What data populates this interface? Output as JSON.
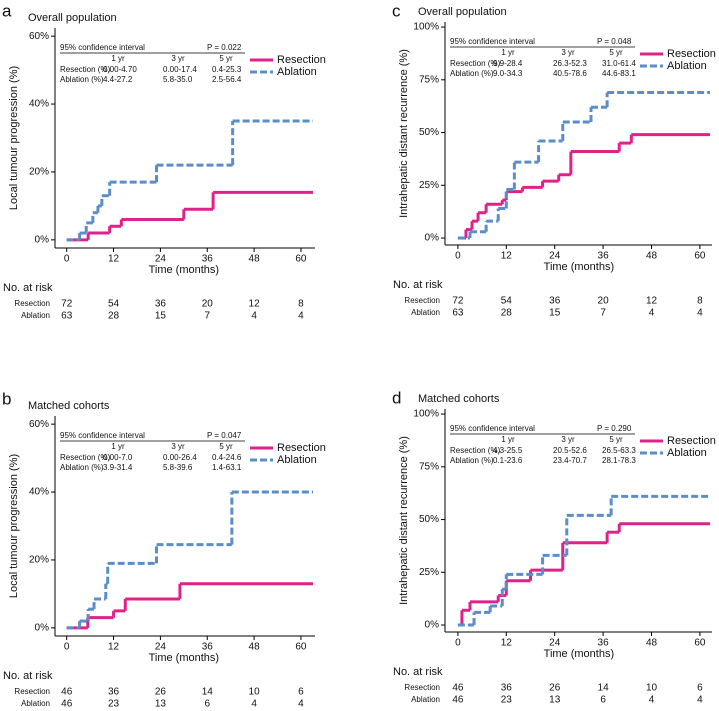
{
  "chart_data": [
    {
      "type": "step",
      "panel_label": "a",
      "subtitle": "Overall population",
      "x_label": "Time (months)",
      "y_label": "Local tumour progression (%)",
      "xlim": [
        -3,
        63.6
      ],
      "ylim": [
        -2.4,
        62.4
      ],
      "xticks": [
        0,
        12,
        24,
        36,
        48,
        60
      ],
      "yticks": [
        {
          "value": 0,
          "label": "0%"
        },
        {
          "value": 20,
          "label": "20%"
        },
        {
          "value": 40,
          "label": "40%"
        },
        {
          "value": 60,
          "label": "60%"
        }
      ],
      "series": [
        {
          "name": "Resection",
          "color": "#e0218a",
          "line_style": "solid",
          "x": [
            0,
            5.5,
            11,
            14,
            30,
            37.5
          ],
          "values": [
            0,
            2,
            4,
            6,
            9,
            14
          ]
        },
        {
          "name": "Ablation",
          "color": "#5b8ec9",
          "line_style": "dashed",
          "x": [
            0,
            3.3,
            5,
            6.7,
            8,
            9,
            11,
            23,
            42.5
          ],
          "values": [
            0,
            2,
            5,
            8,
            10,
            13,
            17,
            22,
            35
          ]
        }
      ],
      "ci_table": {
        "title": "95% confidence interval",
        "p_value": "P = 0.022",
        "columns": [
          "1 yr",
          "3 yr",
          "5 yr"
        ],
        "rows": [
          {
            "label": "Resection (%)",
            "cells": [
              "0.00-4.70",
              "0.00-17.4",
              "0.4-25.3"
            ]
          },
          {
            "label": "Ablation (%)",
            "cells": [
              "4.4-27.2",
              "5.8-35.0",
              "2.5-56.4"
            ]
          }
        ]
      },
      "risk_table": {
        "title": "No. at risk",
        "rows": [
          {
            "label": "Resection",
            "values": [
              72,
              54,
              36,
              20,
              12,
              8
            ]
          },
          {
            "label": "Ablation",
            "values": [
              63,
              28,
              15,
              7,
              4,
              4
            ]
          }
        ]
      }
    },
    {
      "type": "step",
      "panel_label": "b",
      "subtitle": "Matched cohorts",
      "x_label": "Time (months)",
      "y_label": "Local tumour progression (%)",
      "xlim": [
        -3,
        63.6
      ],
      "ylim": [
        -2.4,
        62.4
      ],
      "xticks": [
        0,
        12,
        24,
        36,
        48,
        60
      ],
      "yticks": [
        {
          "value": 0,
          "label": "0%"
        },
        {
          "value": 20,
          "label": "20%"
        },
        {
          "value": 40,
          "label": "40%"
        },
        {
          "value": 60,
          "label": "60%"
        }
      ],
      "series": [
        {
          "name": "Resection",
          "color": "#e0218a",
          "line_style": "solid",
          "x": [
            0,
            5.4,
            12,
            15,
            29
          ],
          "values": [
            0,
            3,
            5,
            8.5,
            13
          ]
        },
        {
          "name": "Ablation",
          "color": "#5b8ec9",
          "line_style": "dashed",
          "x": [
            0,
            3.3,
            5.5,
            7,
            10,
            10.5,
            23,
            42.3
          ],
          "values": [
            0,
            2,
            5.5,
            8.5,
            13,
            19,
            24.5,
            40
          ]
        }
      ],
      "ci_table": {
        "title": "95% confidence interval",
        "p_value": "P = 0.047",
        "columns": [
          "1 yr",
          "3 yr",
          "5 yr"
        ],
        "rows": [
          {
            "label": "Resection (%)",
            "cells": [
              "0.00-7.0",
              "0.00-26.4",
              "0.4-24.6"
            ]
          },
          {
            "label": "Ablation (%)",
            "cells": [
              "3.9-31.4",
              "5.8-39.6",
              "1.4-63.1"
            ]
          }
        ]
      },
      "risk_table": {
        "title": "No. at risk",
        "rows": [
          {
            "label": "Resection",
            "values": [
              46,
              36,
              26,
              14,
              10,
              6
            ]
          },
          {
            "label": "Ablation",
            "values": [
              46,
              23,
              13,
              6,
              4,
              4
            ]
          }
        ]
      }
    },
    {
      "type": "step",
      "panel_label": "c",
      "subtitle": "Overall population",
      "x_label": "Time (months)",
      "y_label": "Intrahepatic distant recurrence (%)",
      "xlim": [
        -3.2,
        63
      ],
      "ylim": [
        -3.3,
        102.4
      ],
      "xticks": [
        0,
        12,
        24,
        36,
        48,
        60
      ],
      "yticks": [
        {
          "value": 0,
          "label": "0%"
        },
        {
          "value": 25,
          "label": "25%"
        },
        {
          "value": 50,
          "label": "50%"
        },
        {
          "value": 75,
          "label": "75%"
        },
        {
          "value": 100,
          "label": "100%"
        }
      ],
      "series": [
        {
          "name": "Resection",
          "color": "#e0218a",
          "line_style": "solid",
          "x": [
            0,
            2,
            3.5,
            5,
            7,
            11,
            12,
            16,
            21,
            25,
            28,
            40,
            43
          ],
          "values": [
            0,
            4,
            8,
            12,
            16,
            18,
            22,
            24,
            27,
            30,
            41,
            45,
            49
          ]
        },
        {
          "name": "Ablation",
          "color": "#5b8ec9",
          "line_style": "dashed",
          "x": [
            0,
            3,
            7,
            10,
            12,
            14,
            20,
            26,
            33,
            37
          ],
          "values": [
            0,
            3,
            8,
            14,
            23,
            36,
            46,
            55,
            62,
            69
          ]
        }
      ],
      "ci_table": {
        "title": "95% confidence interval",
        "p_value": "P = 0.048",
        "columns": [
          "1 yr",
          "3 yr",
          "5 yr"
        ],
        "rows": [
          {
            "label": "Resection (%)",
            "cells": [
              "9.9-28.4",
              "26.3-52.3",
              "31.0-61.4"
            ]
          },
          {
            "label": "Ablation (%)",
            "cells": [
              "9.0-34.3",
              "40.5-78.6",
              "44.6-83.1"
            ]
          }
        ]
      },
      "risk_table": {
        "title": "No. at risk",
        "rows": [
          {
            "label": "Resection",
            "values": [
              72,
              54,
              36,
              20,
              12,
              8
            ]
          },
          {
            "label": "Ablation",
            "values": [
              63,
              28,
              15,
              7,
              4,
              4
            ]
          }
        ]
      }
    },
    {
      "type": "step",
      "panel_label": "d",
      "subtitle": "Matched cohorts",
      "x_label": "Time (months)",
      "y_label": "Intrahepatic distant recurrence (%)",
      "xlim": [
        -3.2,
        63
      ],
      "ylim": [
        -3.3,
        102.4
      ],
      "xticks": [
        0,
        12,
        24,
        36,
        48,
        60
      ],
      "yticks": [
        {
          "value": 0,
          "label": "0%"
        },
        {
          "value": 25,
          "label": "25%"
        },
        {
          "value": 50,
          "label": "50%"
        },
        {
          "value": 75,
          "label": "75%"
        },
        {
          "value": 100,
          "label": "100%"
        }
      ],
      "series": [
        {
          "name": "Resection",
          "color": "#e0218a",
          "line_style": "solid",
          "x": [
            0,
            1,
            3,
            10,
            12,
            18,
            26,
            37,
            40
          ],
          "values": [
            0,
            7,
            11,
            14,
            21,
            26,
            39,
            44,
            48
          ]
        },
        {
          "name": "Ablation",
          "color": "#5b8ec9",
          "line_style": "dashed",
          "x": [
            0,
            4,
            8,
            11,
            12,
            21,
            27,
            38
          ],
          "values": [
            0,
            6,
            9,
            17,
            24,
            33,
            52,
            61
          ]
        }
      ],
      "ci_table": {
        "title": "95% confidence interval",
        "p_value": "P = 0.290",
        "columns": [
          "1 yr",
          "3 yr",
          "5 yr"
        ],
        "rows": [
          {
            "label": "Resection (%)",
            "cells": [
              "4.3-25.5",
              "20.5-52.6",
              "26.5-63.3"
            ]
          },
          {
            "label": "Ablation (%)",
            "cells": [
              "0.1-23.6",
              "23.4-70.7",
              "28.1-78.3"
            ]
          }
        ]
      },
      "risk_table": {
        "title": "No. at risk",
        "rows": [
          {
            "label": "Resection",
            "values": [
              46,
              36,
              26,
              14,
              10,
              6
            ]
          },
          {
            "label": "Ablation",
            "values": [
              46,
              23,
              13,
              6,
              4,
              4
            ]
          }
        ]
      }
    }
  ]
}
